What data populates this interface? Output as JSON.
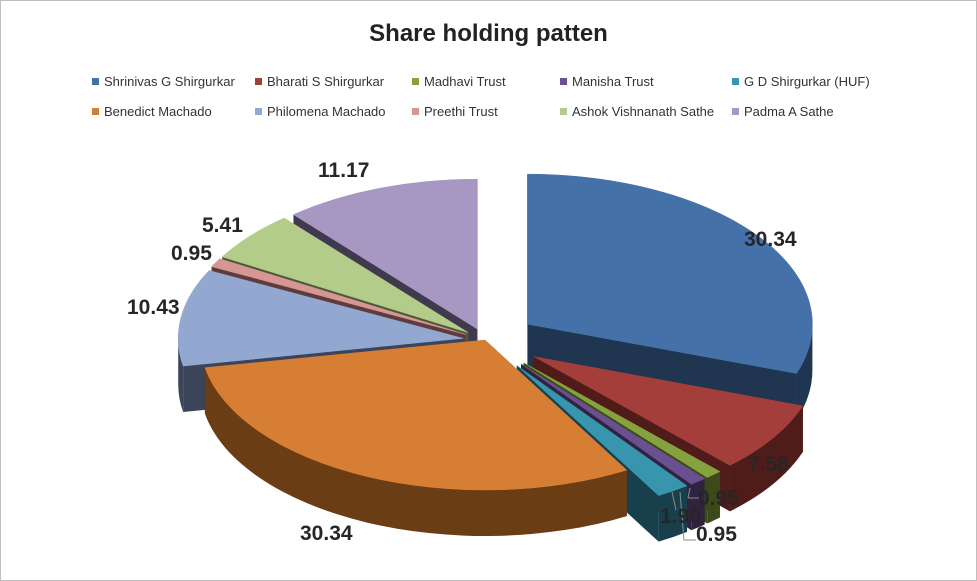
{
  "chart_data": {
    "type": "pie",
    "title": "Share holding patten",
    "legend_position": "top",
    "categories": [
      "Shrinivas G Shirgurkar",
      "Bharati S Shirgurkar",
      "Madhavi Trust",
      "Manisha Trust",
      "G D Shirgurkar (HUF)",
      "Benedict Machado",
      "Philomena Machado",
      "Preethi Trust",
      "Ashok Vishnanath Sathe",
      "Padma A Sathe"
    ],
    "values": [
      30.34,
      7.58,
      0.95,
      0.95,
      1.9,
      30.34,
      10.43,
      0.95,
      5.41,
      11.17
    ],
    "labels": [
      "30.34",
      "7.58",
      "0.95",
      "0.95",
      "1.90",
      "30.34",
      "10.43",
      "0.95",
      "5.41",
      "11.17"
    ],
    "colors": [
      "#4472a8",
      "#a43e3b",
      "#86a23e",
      "#6a4f91",
      "#3795ad",
      "#d77e35",
      "#92a8d0",
      "#d69694",
      "#b4cc8a",
      "#a798c3"
    ],
    "side_colors": [
      "#1f3550",
      "#4f1c1a",
      "#3c4a1a",
      "#2f2340",
      "#17404c",
      "#6b3d14",
      "#3b4459",
      "#5d3c3b",
      "#4d5a3a",
      "#3f3a4e"
    ]
  }
}
